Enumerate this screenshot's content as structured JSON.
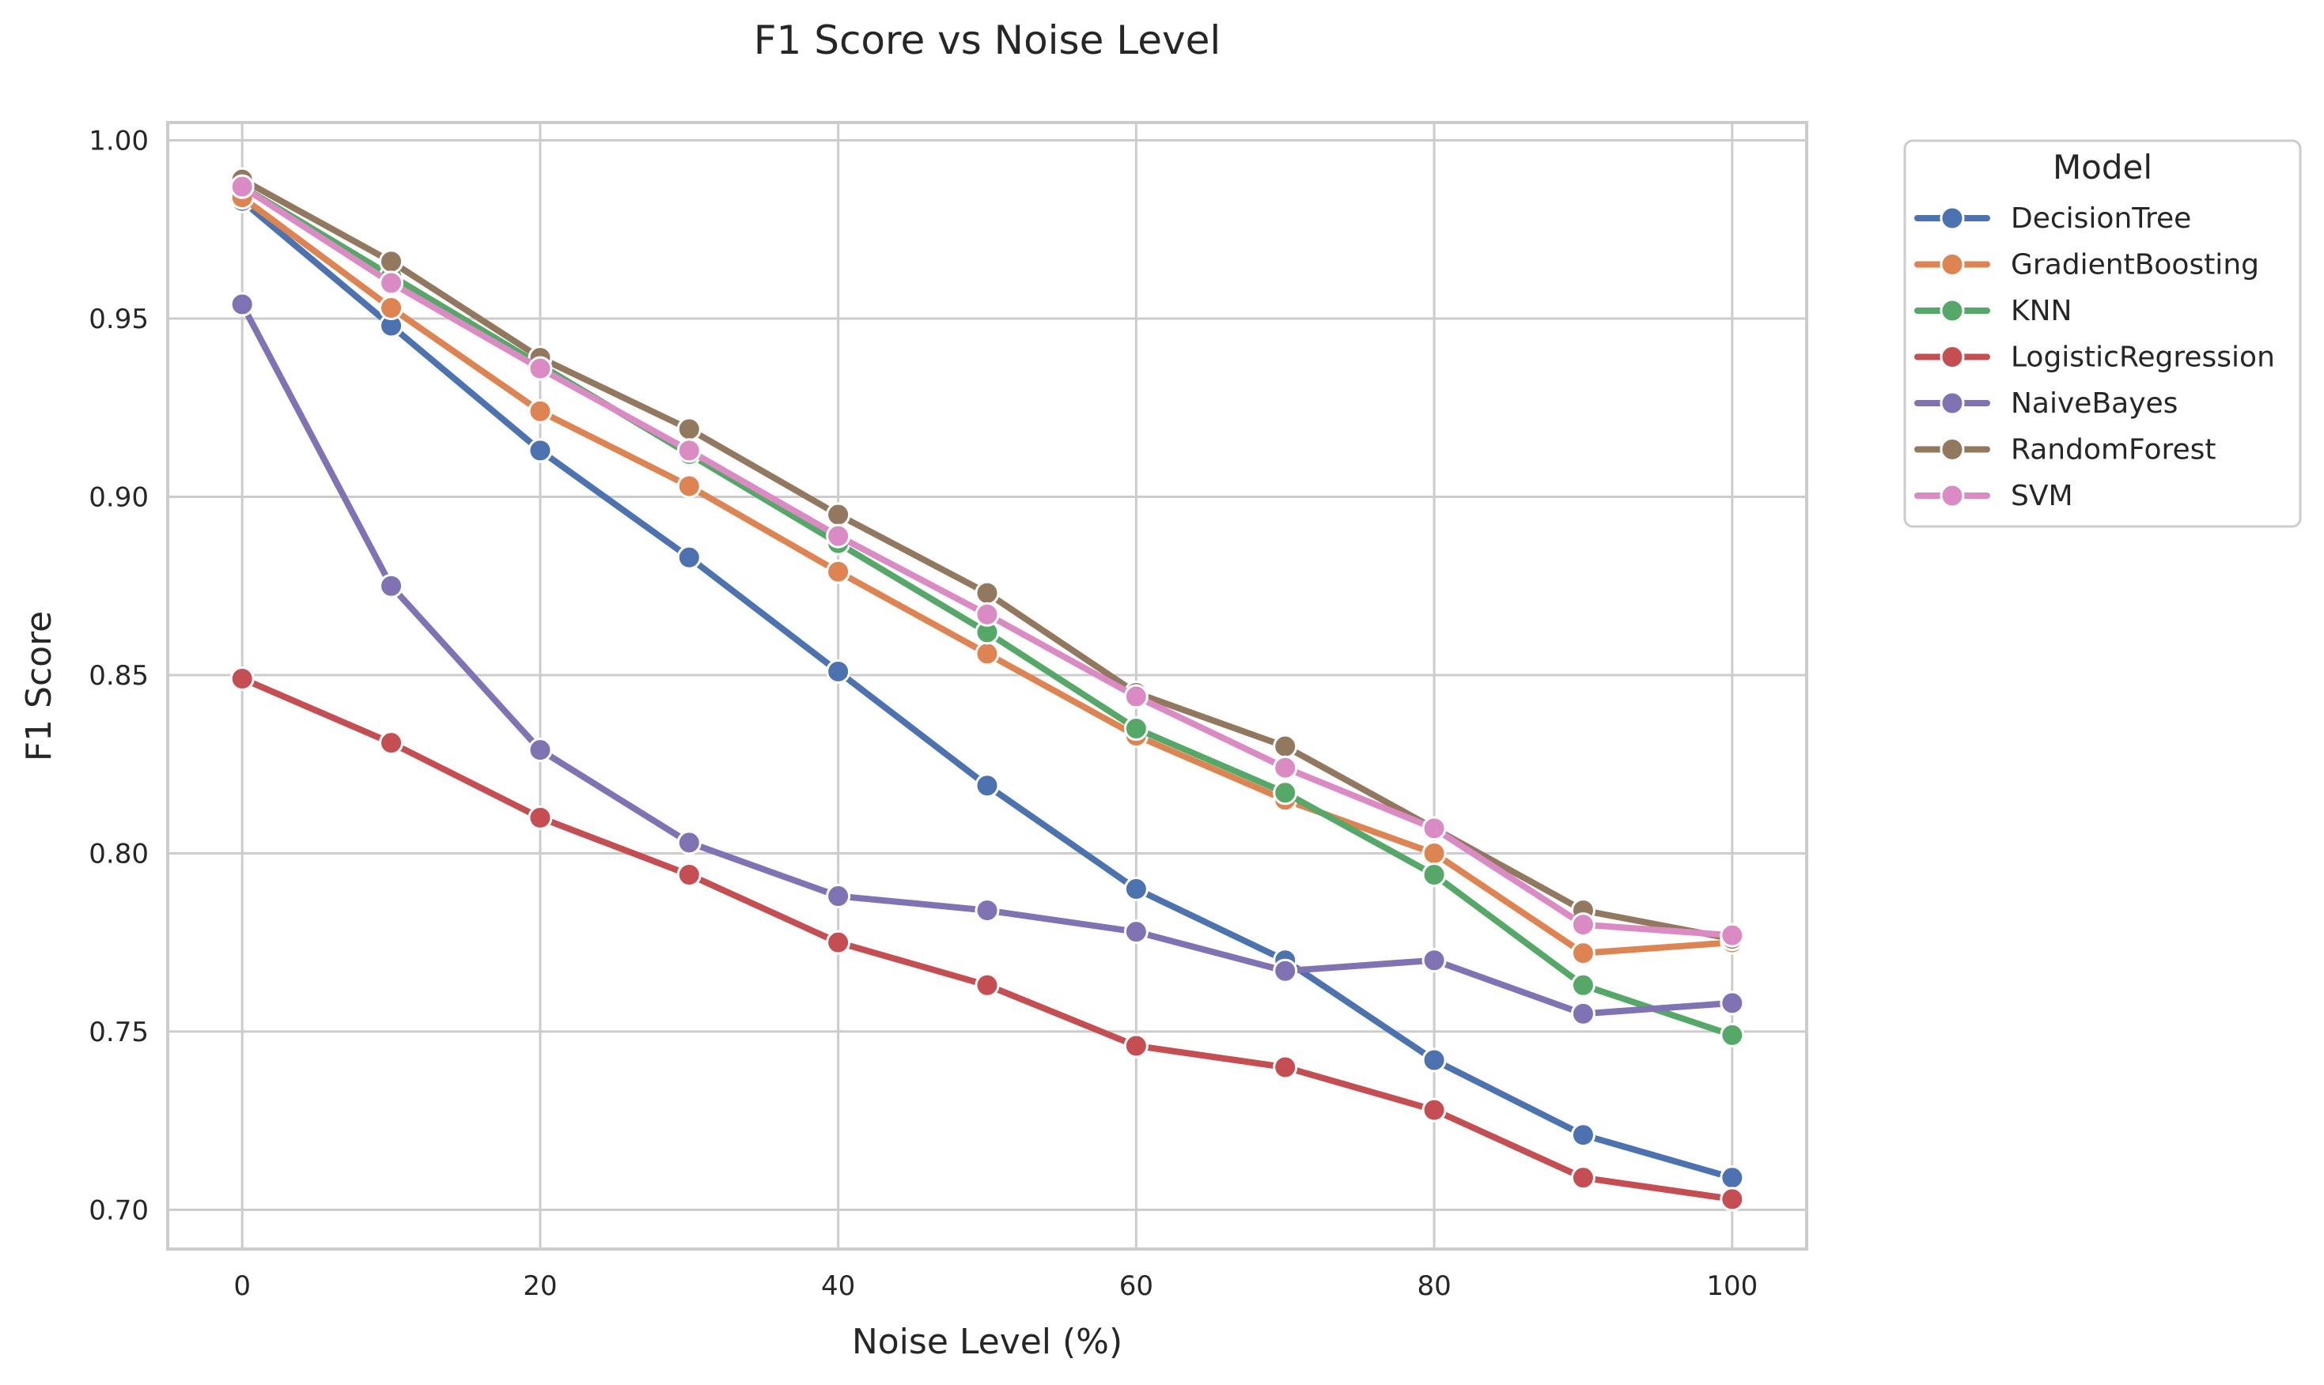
{
  "chart_data": {
    "type": "line",
    "title": "F1 Score vs Noise Level",
    "xlabel": "Noise Level (%)",
    "ylabel": "F1 Score",
    "x": [
      0,
      10,
      20,
      30,
      40,
      50,
      60,
      70,
      80,
      90,
      100
    ],
    "xlim": [
      -5,
      105
    ],
    "ylim": [
      0.689,
      1.005
    ],
    "xticks": [
      0,
      20,
      40,
      60,
      80,
      100
    ],
    "yticks": [
      0.7,
      0.75,
      0.8,
      0.85,
      0.9,
      0.95,
      1.0
    ],
    "xtick_labels": [
      "0",
      "20",
      "40",
      "60",
      "80",
      "100"
    ],
    "ytick_labels": [
      "0.70",
      "0.75",
      "0.80",
      "0.85",
      "0.90",
      "0.95",
      "1.00"
    ],
    "grid": true,
    "legend": {
      "title": "Model",
      "placement": "outside-top-right"
    },
    "series": [
      {
        "name": "DecisionTree",
        "color": "#4c72b0",
        "values": [
          0.983,
          0.948,
          0.913,
          0.883,
          0.851,
          0.819,
          0.79,
          0.77,
          0.742,
          0.721,
          0.709
        ]
      },
      {
        "name": "GradientBoosting",
        "color": "#dd8452",
        "values": [
          0.984,
          0.953,
          0.924,
          0.903,
          0.879,
          0.856,
          0.833,
          0.815,
          0.8,
          0.772,
          0.775
        ]
      },
      {
        "name": "KNN",
        "color": "#55a868",
        "values": [
          0.987,
          0.962,
          0.937,
          0.912,
          0.887,
          0.862,
          0.835,
          0.817,
          0.794,
          0.763,
          0.749
        ]
      },
      {
        "name": "LogisticRegression",
        "color": "#c44e52",
        "values": [
          0.849,
          0.831,
          0.81,
          0.794,
          0.775,
          0.763,
          0.746,
          0.74,
          0.728,
          0.709,
          0.703
        ]
      },
      {
        "name": "NaiveBayes",
        "color": "#8172b3",
        "values": [
          0.954,
          0.875,
          0.829,
          0.803,
          0.788,
          0.784,
          0.778,
          0.767,
          0.77,
          0.755,
          0.758
        ]
      },
      {
        "name": "RandomForest",
        "color": "#937860",
        "values": [
          0.989,
          0.966,
          0.939,
          0.919,
          0.895,
          0.873,
          0.845,
          0.83,
          0.807,
          0.784,
          0.776
        ]
      },
      {
        "name": "SVM",
        "color": "#da8bc3",
        "values": [
          0.987,
          0.96,
          0.936,
          0.913,
          0.889,
          0.867,
          0.844,
          0.824,
          0.807,
          0.78,
          0.777
        ]
      }
    ]
  }
}
